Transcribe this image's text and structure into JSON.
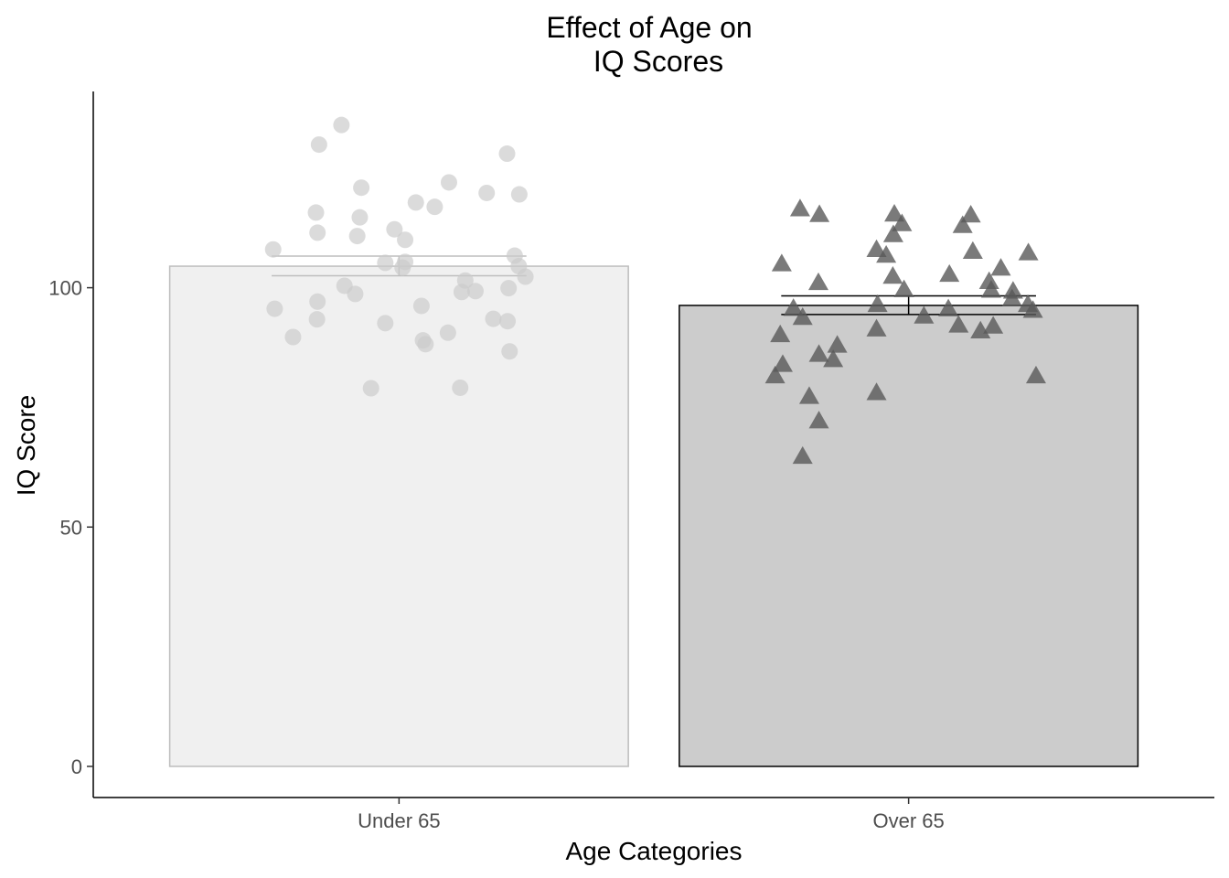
{
  "chart_data": {
    "type": "bar",
    "title_lines": [
      "Effect of Age on",
      "IQ Scores"
    ],
    "xlabel": "Age Categories",
    "ylabel": "IQ Score",
    "categories": [
      "Under 65",
      "Over 65"
    ],
    "ylim": [
      -6.5,
      141
    ],
    "yticks": [
      "0",
      "50",
      "100"
    ],
    "grid": false,
    "legend": "none",
    "bars": [
      {
        "category": "Under 65",
        "mean": 104.5,
        "se_low": 102.5,
        "se_high": 106.6,
        "fill": "#f0f0f0",
        "stroke": "#bdbdbd",
        "point_shape": "circle",
        "point_color": "#cccccc"
      },
      {
        "category": "Over 65",
        "mean": 96.3,
        "se_low": 94.4,
        "se_high": 98.3,
        "fill": "#cccccc",
        "stroke": "#000000",
        "point_shape": "triangle",
        "point_color": "#595959"
      }
    ],
    "points": [
      [
        {
          "x": -0.247,
          "y": 108.0
        },
        {
          "x": -0.163,
          "y": 115.7
        },
        {
          "x": -0.157,
          "y": 129.9
        },
        {
          "x": -0.113,
          "y": 134.0
        },
        {
          "x": -0.16,
          "y": 111.5
        },
        {
          "x": -0.074,
          "y": 120.9
        },
        {
          "x": -0.077,
          "y": 114.7
        },
        {
          "x": -0.082,
          "y": 110.8
        },
        {
          "x": -0.009,
          "y": 112.2
        },
        {
          "x": 0.012,
          "y": 110.0
        },
        {
          "x": 0.033,
          "y": 117.8
        },
        {
          "x": 0.07,
          "y": 116.9
        },
        {
          "x": 0.098,
          "y": 122.0
        },
        {
          "x": 0.172,
          "y": 119.8
        },
        {
          "x": 0.212,
          "y": 128.0
        },
        {
          "x": 0.236,
          "y": 119.5
        },
        {
          "x": -0.027,
          "y": 105.2
        },
        {
          "x": 0.007,
          "y": 104.2
        },
        {
          "x": 0.012,
          "y": 105.4
        },
        {
          "x": 0.13,
          "y": 101.5
        },
        {
          "x": 0.227,
          "y": 106.7
        },
        {
          "x": 0.235,
          "y": 104.5
        },
        {
          "x": 0.248,
          "y": 102.3
        },
        {
          "x": -0.107,
          "y": 100.4
        },
        {
          "x": -0.086,
          "y": 98.7
        },
        {
          "x": -0.16,
          "y": 97.1
        },
        {
          "x": -0.244,
          "y": 95.6
        },
        {
          "x": -0.161,
          "y": 93.4
        },
        {
          "x": -0.208,
          "y": 89.7
        },
        {
          "x": -0.027,
          "y": 92.6
        },
        {
          "x": 0.044,
          "y": 96.2
        },
        {
          "x": 0.123,
          "y": 99.1
        },
        {
          "x": 0.15,
          "y": 99.3
        },
        {
          "x": 0.215,
          "y": 99.9
        },
        {
          "x": 0.185,
          "y": 93.5
        },
        {
          "x": 0.213,
          "y": 93.0
        },
        {
          "x": 0.096,
          "y": 90.6
        },
        {
          "x": 0.047,
          "y": 89.0
        },
        {
          "x": 0.052,
          "y": 88.2
        },
        {
          "x": 0.217,
          "y": 86.7
        },
        {
          "x": -0.055,
          "y": 79.0
        },
        {
          "x": 0.12,
          "y": 79.1
        }
      ],
      [
        {
          "x": -0.213,
          "y": 116.5
        },
        {
          "x": -0.175,
          "y": 115.3
        },
        {
          "x": -0.249,
          "y": 105.0
        },
        {
          "x": -0.177,
          "y": 101.1
        },
        {
          "x": -0.226,
          "y": 95.7
        },
        {
          "x": -0.208,
          "y": 93.8
        },
        {
          "x": -0.252,
          "y": 90.2
        },
        {
          "x": -0.176,
          "y": 86.1
        },
        {
          "x": -0.14,
          "y": 88.0
        },
        {
          "x": -0.148,
          "y": 85.0
        },
        {
          "x": -0.247,
          "y": 84.0
        },
        {
          "x": -0.262,
          "y": 81.6
        },
        {
          "x": -0.195,
          "y": 77.3
        },
        {
          "x": -0.176,
          "y": 72.2
        },
        {
          "x": -0.208,
          "y": 64.8
        },
        {
          "x": -0.063,
          "y": 91.4
        },
        {
          "x": -0.063,
          "y": 78.1
        },
        {
          "x": -0.061,
          "y": 96.5
        },
        {
          "x": -0.063,
          "y": 108.0
        },
        {
          "x": -0.044,
          "y": 106.8
        },
        {
          "x": -0.03,
          "y": 111.1
        },
        {
          "x": -0.028,
          "y": 115.4
        },
        {
          "x": -0.013,
          "y": 113.4
        },
        {
          "x": -0.031,
          "y": 102.4
        },
        {
          "x": -0.009,
          "y": 99.6
        },
        {
          "x": 0.03,
          "y": 94.1
        },
        {
          "x": 0.08,
          "y": 102.8
        },
        {
          "x": 0.078,
          "y": 95.6
        },
        {
          "x": 0.098,
          "y": 92.2
        },
        {
          "x": 0.106,
          "y": 113.0
        },
        {
          "x": 0.122,
          "y": 115.2
        },
        {
          "x": 0.126,
          "y": 107.6
        },
        {
          "x": 0.158,
          "y": 101.3
        },
        {
          "x": 0.162,
          "y": 99.5
        },
        {
          "x": 0.181,
          "y": 104.1
        },
        {
          "x": 0.205,
          "y": 99.3
        },
        {
          "x": 0.203,
          "y": 97.7
        },
        {
          "x": 0.141,
          "y": 91.0
        },
        {
          "x": 0.166,
          "y": 92.0
        },
        {
          "x": 0.234,
          "y": 96.5
        },
        {
          "x": 0.244,
          "y": 95.3
        },
        {
          "x": 0.235,
          "y": 107.3
        },
        {
          "x": 0.25,
          "y": 81.6
        }
      ]
    ]
  }
}
